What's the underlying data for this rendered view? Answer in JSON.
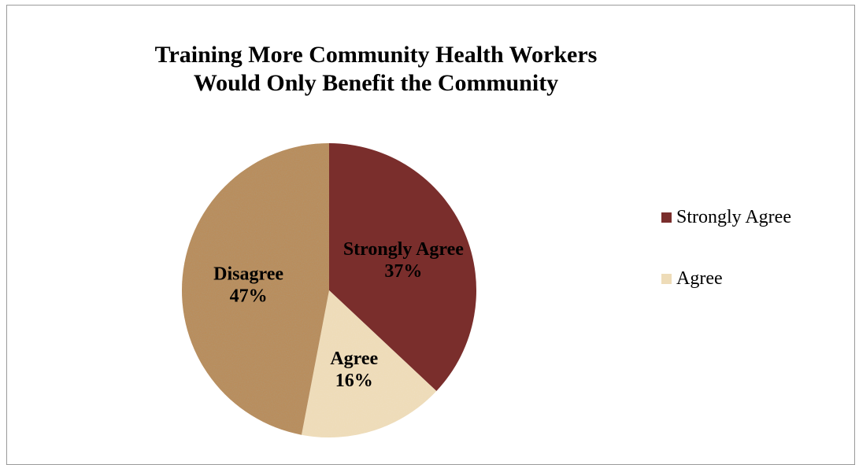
{
  "chart_data": {
    "type": "pie",
    "title_lines": [
      "Training More Community Health Workers",
      "Would Only Benefit the Community"
    ],
    "slices": [
      {
        "label": "Strongly Agree",
        "percent_label": "37%",
        "value": 37,
        "color": "#7a2e2c"
      },
      {
        "label": "Agree",
        "percent_label": "16%",
        "value": 16,
        "color": "#eedcb8"
      },
      {
        "label": "Disagree",
        "percent_label": "47%",
        "value": 47,
        "color": "#b98d5c"
      }
    ],
    "legend": [
      {
        "label": "Strongly Agree",
        "color": "#7a2e2c"
      },
      {
        "label": "Agree",
        "color": "#eedcb8"
      }
    ],
    "legend_position": "right"
  }
}
